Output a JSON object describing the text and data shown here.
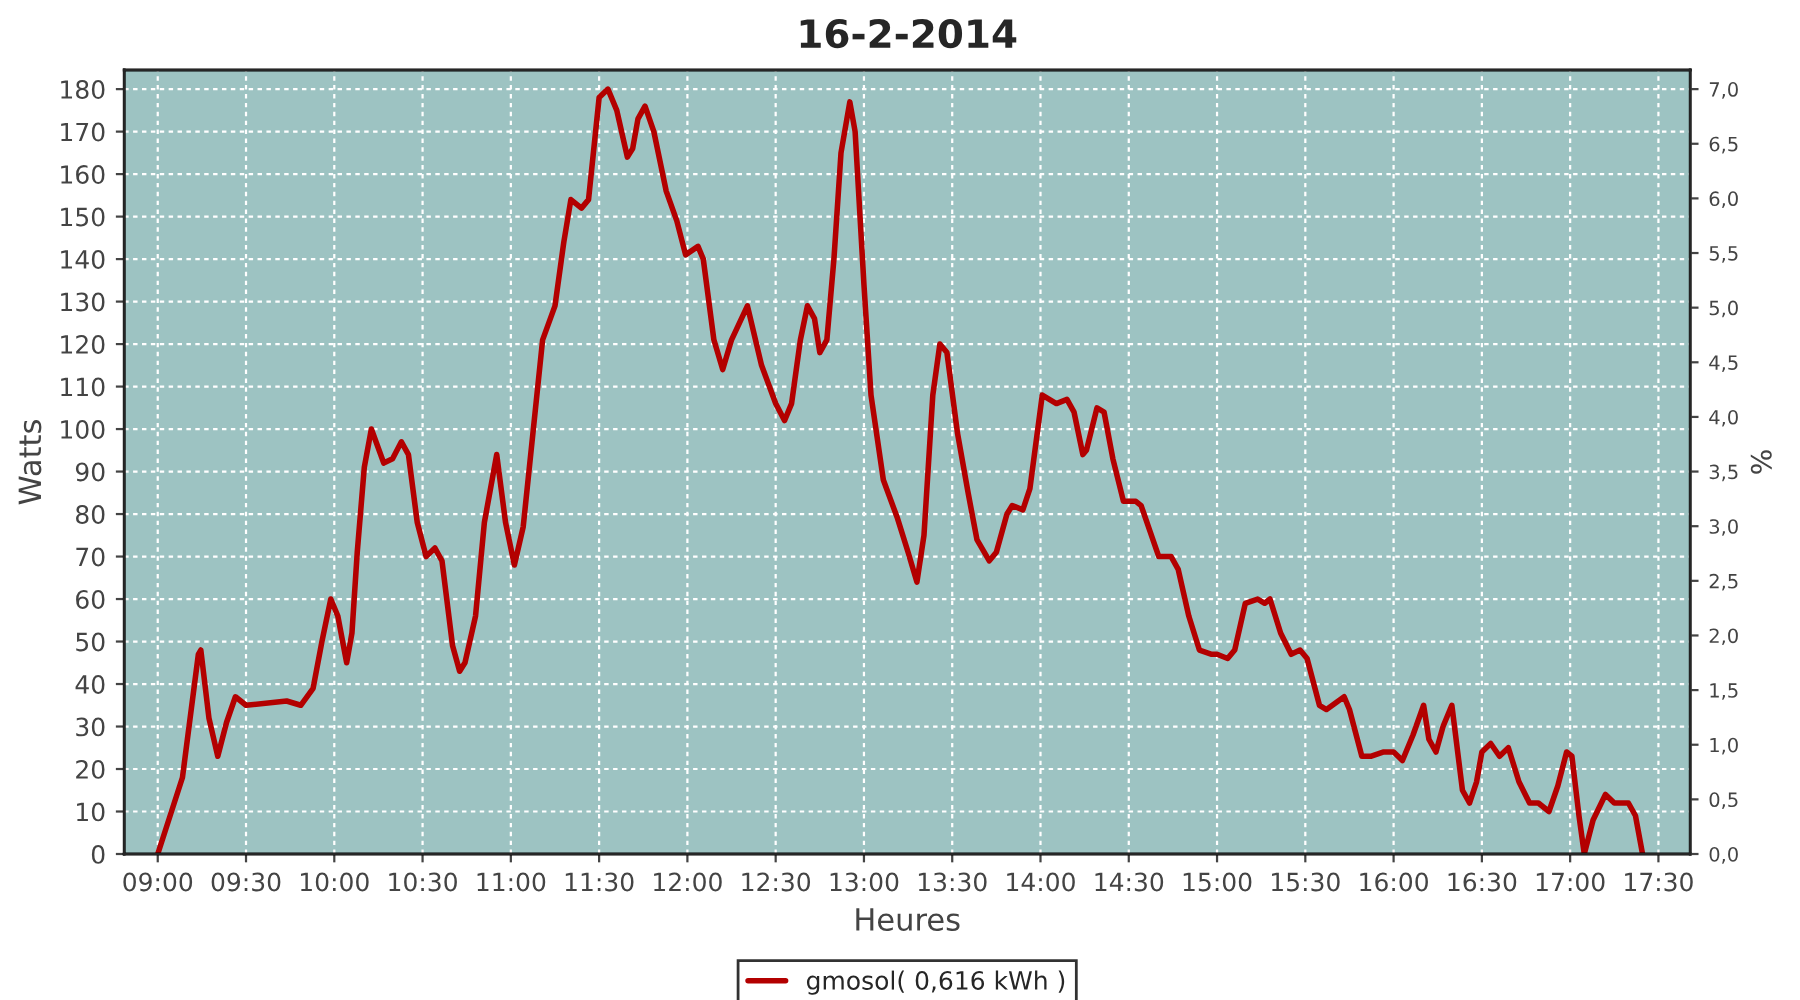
{
  "chart_data": {
    "type": "line",
    "title": "16-2-2014",
    "xlabel": "Heures",
    "ylabel": "Watts",
    "y2label": "%",
    "x": [
      9.0,
      9.07,
      9.14,
      9.23,
      9.244,
      9.29,
      9.34,
      9.39,
      9.44,
      9.5,
      9.73,
      9.81,
      9.88,
      9.93,
      9.98,
      10.02,
      10.07,
      10.1,
      10.13,
      10.17,
      10.21,
      10.28,
      10.33,
      10.38,
      10.42,
      10.47,
      10.52,
      10.57,
      10.61,
      10.67,
      10.71,
      10.74,
      10.8,
      10.85,
      10.92,
      10.97,
      11.02,
      11.07,
      11.12,
      11.18,
      11.25,
      11.3,
      11.34,
      11.4,
      11.44,
      11.5,
      11.55,
      11.6,
      11.66,
      11.69,
      11.72,
      11.76,
      11.81,
      11.88,
      11.94,
      11.99,
      12.06,
      12.09,
      12.15,
      12.2,
      12.25,
      12.34,
      12.42,
      12.5,
      12.55,
      12.59,
      12.64,
      12.68,
      12.72,
      12.75,
      12.79,
      12.83,
      12.87,
      12.92,
      12.95,
      13.0,
      13.04,
      13.11,
      13.19,
      13.25,
      13.3,
      13.34,
      13.39,
      13.43,
      13.47,
      13.53,
      13.59,
      13.64,
      13.71,
      13.75,
      13.81,
      13.84,
      13.9,
      13.94,
      14.01,
      14.09,
      14.15,
      14.19,
      14.24,
      14.26,
      14.32,
      14.36,
      14.41,
      14.47,
      14.54,
      14.57,
      14.62,
      14.67,
      14.74,
      14.78,
      14.84,
      14.9,
      14.97,
      15.0,
      15.06,
      15.1,
      15.16,
      15.23,
      15.27,
      15.3,
      15.36,
      15.42,
      15.47,
      15.51,
      15.58,
      15.62,
      15.72,
      15.75,
      15.82,
      15.87,
      15.94,
      16.0,
      16.05,
      16.11,
      16.17,
      16.2,
      16.24,
      16.28,
      16.33,
      16.39,
      16.43,
      16.47,
      16.5,
      16.55,
      16.6,
      16.65,
      16.71,
      16.77,
      16.82,
      16.88,
      16.93,
      16.98,
      17.01,
      17.05,
      17.08,
      17.13,
      17.2,
      17.25,
      17.33,
      17.37,
      17.41
    ],
    "series": [
      {
        "name": "gmosol( 0,616 kWh )",
        "color": "#b30000",
        "values": [
          0,
          9,
          18,
          47,
          48,
          32,
          23,
          31,
          37,
          35,
          36,
          35,
          39,
          50,
          60,
          56,
          45,
          52,
          71,
          91,
          100,
          92,
          93,
          97,
          94,
          78,
          70,
          72,
          69,
          49,
          43,
          45,
          56,
          78,
          94,
          78,
          68,
          77,
          97,
          121,
          129,
          144,
          154,
          152,
          154,
          178,
          180,
          175,
          164,
          166,
          173,
          176,
          170,
          156,
          149,
          141,
          143,
          140,
          121,
          114,
          121,
          129,
          115,
          106,
          102,
          106,
          121,
          129,
          126,
          118,
          121,
          140,
          165,
          177,
          170,
          134,
          108,
          88,
          79,
          71,
          64,
          75,
          108,
          120,
          118,
          99,
          85,
          74,
          69,
          71,
          80,
          82,
          81,
          86,
          108,
          106,
          107,
          104,
          94,
          95,
          105,
          104,
          93,
          83,
          83,
          82,
          76,
          70,
          70,
          67,
          56,
          48,
          47,
          47,
          46,
          48,
          59,
          60,
          59,
          60,
          52,
          47,
          48,
          46,
          35,
          34,
          37,
          34,
          23,
          23,
          24,
          24,
          22,
          28,
          35,
          27,
          24,
          30,
          35,
          15,
          12,
          17,
          24,
          26,
          23,
          25,
          17,
          12,
          12,
          10,
          16,
          24,
          23,
          9,
          0,
          8,
          14,
          12,
          12,
          9,
          0
        ]
      }
    ],
    "xlim": [
      8.81,
      17.68
    ],
    "xticks": [
      {
        "value": 9,
        "label": "09:00"
      },
      {
        "value": 9.5,
        "label": "09:30"
      },
      {
        "value": 10,
        "label": "10:00"
      },
      {
        "value": 10.5,
        "label": "10:30"
      },
      {
        "value": 11,
        "label": "11:00"
      },
      {
        "value": 11.5,
        "label": "11:30"
      },
      {
        "value": 12,
        "label": "12:00"
      },
      {
        "value": 12.5,
        "label": "12:30"
      },
      {
        "value": 13,
        "label": "13:00"
      },
      {
        "value": 13.5,
        "label": "13:30"
      },
      {
        "value": 14,
        "label": "14:00"
      },
      {
        "value": 14.5,
        "label": "14:30"
      },
      {
        "value": 15,
        "label": "15:00"
      },
      {
        "value": 15.5,
        "label": "15:30"
      },
      {
        "value": 16,
        "label": "16:00"
      },
      {
        "value": 16.5,
        "label": "16:30"
      },
      {
        "value": 17,
        "label": "17:00"
      },
      {
        "value": 17.5,
        "label": "17:30"
      }
    ],
    "ylim": [
      0,
      184.5
    ],
    "yticks": [
      0,
      10,
      20,
      30,
      40,
      50,
      60,
      70,
      80,
      90,
      100,
      110,
      120,
      130,
      140,
      150,
      160,
      170,
      180
    ],
    "y2lim": [
      0,
      7.175
    ],
    "y2ticks": [
      {
        "value": 0,
        "label": "0,0"
      },
      {
        "value": 0.5,
        "label": "0,5"
      },
      {
        "value": 1,
        "label": "1,0"
      },
      {
        "value": 1.5,
        "label": "1,5"
      },
      {
        "value": 2,
        "label": "2,0"
      },
      {
        "value": 2.5,
        "label": "2,5"
      },
      {
        "value": 3,
        "label": "3,0"
      },
      {
        "value": 3.5,
        "label": "3,5"
      },
      {
        "value": 4,
        "label": "4,0"
      },
      {
        "value": 4.5,
        "label": "4,5"
      },
      {
        "value": 5,
        "label": "5,0"
      },
      {
        "value": 5.5,
        "label": "5,5"
      },
      {
        "value": 6,
        "label": "6,0"
      },
      {
        "value": 6.5,
        "label": "6,5"
      },
      {
        "value": 7,
        "label": "7,0"
      }
    ],
    "grid": true,
    "legend": "bottom",
    "marker": "none",
    "line_style": "solid"
  }
}
